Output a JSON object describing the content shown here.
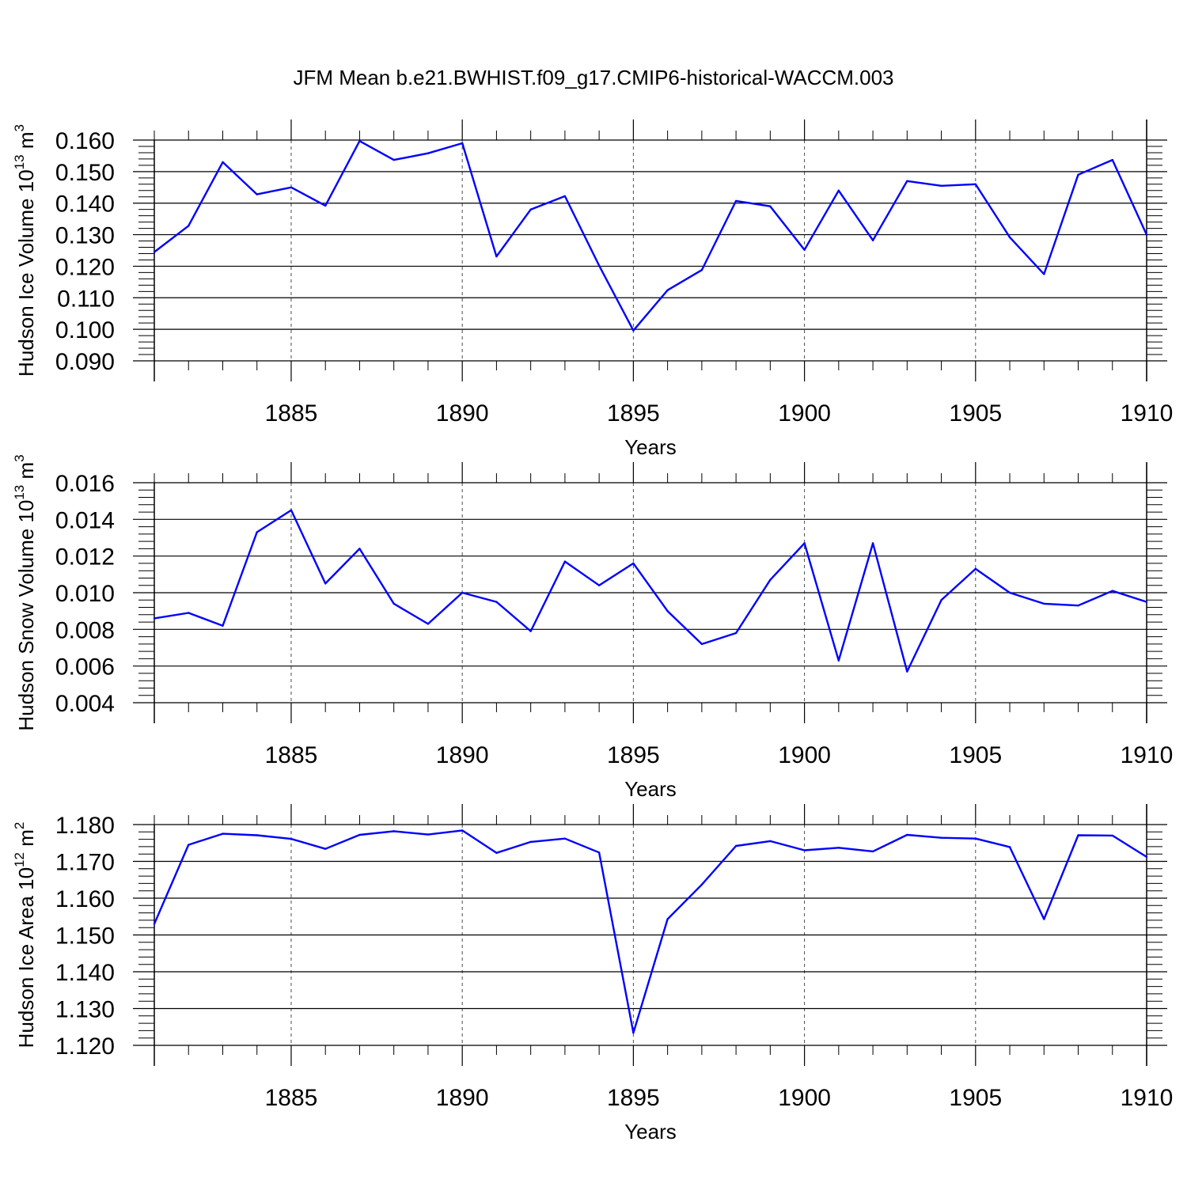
{
  "title": "JFM Mean b.e21.BWHIST.f09_g17.CMIP6-historical-WACCM.003",
  "chart_data": [
    {
      "type": "line",
      "xlabel": "Years",
      "ylabel": "Hudson Ice Volume 10",
      "ylabel_exp": "13",
      "ylabel_unit": "m",
      "ylabel_unit_exp": "3",
      "xlim": [
        1881,
        1910
      ],
      "ylim": [
        0.09,
        0.16
      ],
      "xticks": [
        1885,
        1890,
        1895,
        1900,
        1905,
        1910
      ],
      "yticks": [
        0.09,
        0.1,
        0.11,
        0.12,
        0.13,
        0.14,
        0.15,
        0.16
      ],
      "ytick_labels": [
        "0.090",
        "0.100",
        "0.110",
        "0.120",
        "0.130",
        "0.140",
        "0.150",
        "0.160"
      ],
      "x": [
        1881,
        1882,
        1883,
        1884,
        1885,
        1886,
        1887,
        1888,
        1889,
        1890,
        1891,
        1892,
        1893,
        1894,
        1895,
        1896,
        1897,
        1898,
        1899,
        1900,
        1901,
        1902,
        1903,
        1904,
        1905,
        1906,
        1907,
        1908,
        1909,
        1910
      ],
      "values": [
        0.1245,
        0.1328,
        0.153,
        0.1428,
        0.145,
        0.1392,
        0.1597,
        0.1537,
        0.1558,
        0.159,
        0.1231,
        0.138,
        0.1422,
        0.1202,
        0.0996,
        0.1124,
        0.1188,
        0.1407,
        0.139,
        0.1252,
        0.144,
        0.1282,
        0.147,
        0.1455,
        0.146,
        0.1292,
        0.1175,
        0.149,
        0.1537,
        0.13
      ],
      "color": "#0000ff"
    },
    {
      "type": "line",
      "xlabel": "Years",
      "ylabel": "Hudson Snow Volume 10",
      "ylabel_exp": "13",
      "ylabel_unit": "m",
      "ylabel_unit_exp": "3",
      "xlim": [
        1881,
        1910
      ],
      "ylim": [
        0.004,
        0.016
      ],
      "xticks": [
        1885,
        1890,
        1895,
        1900,
        1905,
        1910
      ],
      "yticks": [
        0.004,
        0.006,
        0.008,
        0.01,
        0.012,
        0.014,
        0.016
      ],
      "ytick_labels": [
        "0.004",
        "0.006",
        "0.008",
        "0.010",
        "0.012",
        "0.014",
        "0.016"
      ],
      "x": [
        1881,
        1882,
        1883,
        1884,
        1885,
        1886,
        1887,
        1888,
        1889,
        1890,
        1891,
        1892,
        1893,
        1894,
        1895,
        1896,
        1897,
        1898,
        1899,
        1900,
        1901,
        1902,
        1903,
        1904,
        1905,
        1906,
        1907,
        1908,
        1909,
        1910
      ],
      "values": [
        0.0086,
        0.0089,
        0.0082,
        0.0133,
        0.0145,
        0.0105,
        0.0124,
        0.0094,
        0.0083,
        0.01,
        0.0095,
        0.0079,
        0.0117,
        0.0104,
        0.0116,
        0.009,
        0.0072,
        0.0078,
        0.0107,
        0.0127,
        0.0063,
        0.0127,
        0.0057,
        0.0096,
        0.0113,
        0.01,
        0.0094,
        0.0093,
        0.0101,
        0.0095
      ],
      "color": "#0000ff"
    },
    {
      "type": "line",
      "xlabel": "Years",
      "ylabel": "Hudson Ice Area 10",
      "ylabel_exp": "12",
      "ylabel_unit": "m",
      "ylabel_unit_exp": "2",
      "xlim": [
        1881,
        1910
      ],
      "ylim": [
        1.12,
        1.18
      ],
      "xticks": [
        1885,
        1890,
        1895,
        1900,
        1905,
        1910
      ],
      "yticks": [
        1.12,
        1.13,
        1.14,
        1.15,
        1.16,
        1.17,
        1.18
      ],
      "ytick_labels": [
        "1.120",
        "1.130",
        "1.140",
        "1.150",
        "1.160",
        "1.170",
        "1.180"
      ],
      "x": [
        1881,
        1882,
        1883,
        1884,
        1885,
        1886,
        1887,
        1888,
        1889,
        1890,
        1891,
        1892,
        1893,
        1894,
        1895,
        1896,
        1897,
        1898,
        1899,
        1900,
        1901,
        1902,
        1903,
        1904,
        1905,
        1906,
        1907,
        1908,
        1909,
        1910
      ],
      "values": [
        1.153,
        1.1745,
        1.1775,
        1.1771,
        1.1761,
        1.1734,
        1.1772,
        1.1782,
        1.1773,
        1.1784,
        1.1723,
        1.1753,
        1.1762,
        1.1724,
        1.1234,
        1.1543,
        1.1637,
        1.1742,
        1.1755,
        1.173,
        1.1737,
        1.1727,
        1.1772,
        1.1764,
        1.1762,
        1.1739,
        1.1543,
        1.1771,
        1.177,
        1.1712
      ],
      "color": "#0000ff"
    }
  ]
}
